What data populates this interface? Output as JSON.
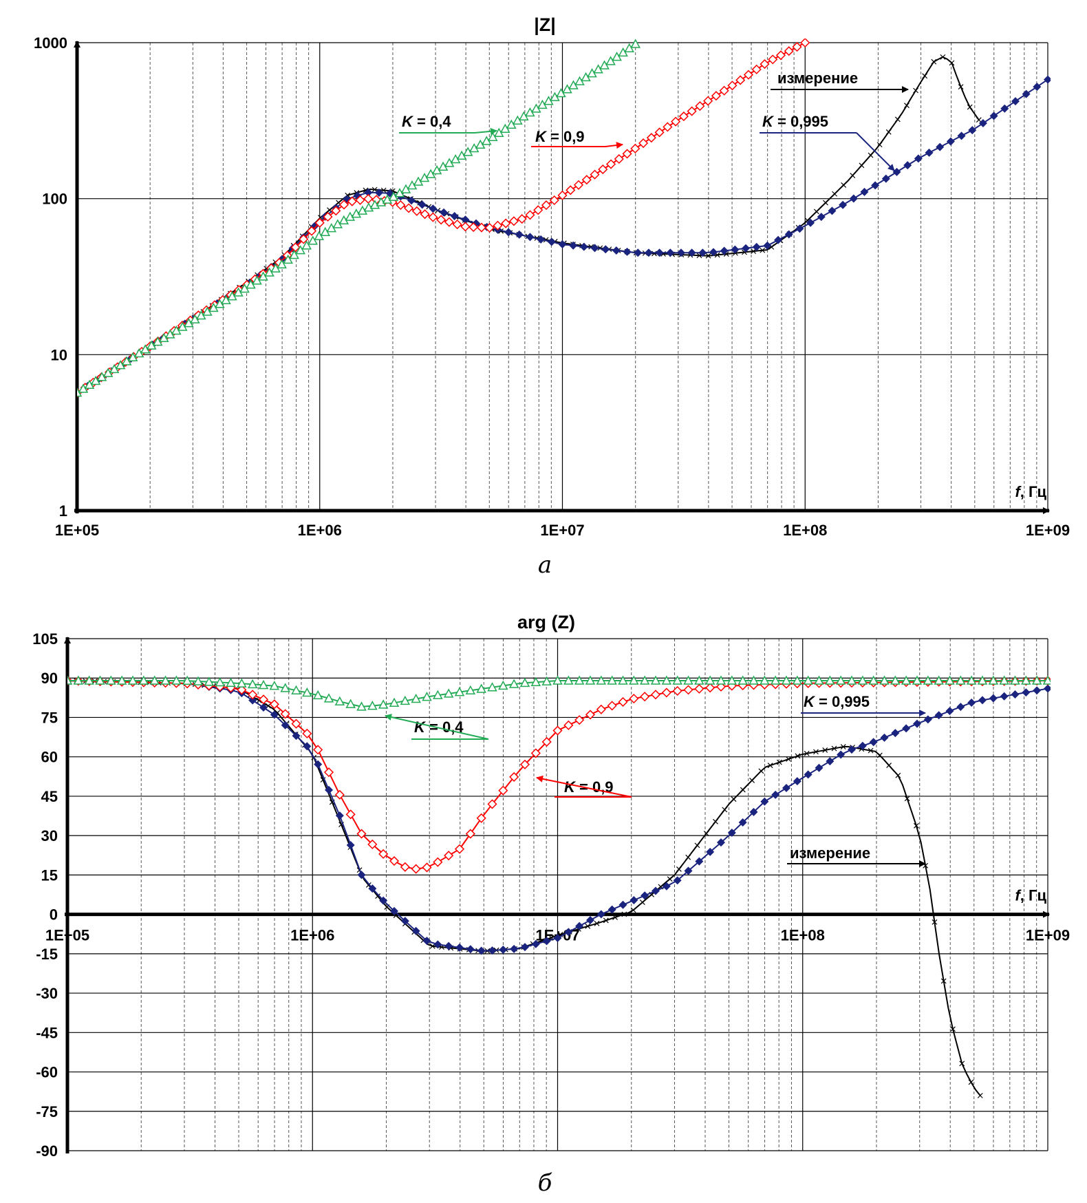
{
  "chart_data": [
    {
      "id": "a",
      "type": "line",
      "title": "|Z|",
      "caption": "а",
      "xscale": "log",
      "yscale": "log",
      "xlim": [
        100000,
        1000000000
      ],
      "ylim": [
        1,
        1000
      ],
      "xlabel_italic": "f",
      "xlabel_rest": ", Гц",
      "xticks": [
        "1E+05",
        "1E+06",
        "1E+07",
        "1E+08",
        "1E+09"
      ],
      "yticks": [
        "1",
        "10",
        "100",
        "1000"
      ],
      "grid": true,
      "series": [
        {
          "name": "измерение",
          "color": "#000000",
          "marker": "cross",
          "x": [
            100000,
            150000,
            200000,
            300000,
            500000,
            700000,
            1000000,
            1300000,
            1600000,
            2000000,
            3000000,
            5000000,
            10000000,
            20000000,
            40000000,
            70000000,
            100000000,
            150000000,
            200000000,
            250000000,
            300000000,
            340000000,
            370000000,
            400000000,
            430000000,
            470000000,
            520000000
          ],
          "y": [
            5.7,
            8.5,
            11.3,
            17,
            29,
            42,
            75,
            105,
            115,
            112,
            85,
            64,
            52,
            45,
            43,
            47,
            70,
            130,
            215,
            350,
            560,
            760,
            810,
            760,
            560,
            400,
            320
          ]
        },
        {
          "name": "K = 0,995",
          "color": "#1a237e",
          "marker": "diamond",
          "x": [
            100000,
            150000,
            200000,
            300000,
            500000,
            700000,
            1000000,
            1300000,
            1600000,
            2000000,
            3000000,
            5000000,
            10000000,
            20000000,
            40000000,
            70000000,
            100000000,
            150000000,
            200000000,
            300000000,
            500000000,
            700000000,
            1000000000
          ],
          "y": [
            5.7,
            8.5,
            11.3,
            17,
            28,
            41,
            72,
            100,
            110,
            108,
            85,
            65,
            51,
            45,
            45,
            50,
            67,
            95,
            125,
            185,
            280,
            400,
            580
          ]
        },
        {
          "name": "K = 0,9",
          "color": "#ff0000",
          "marker": "diamond-open",
          "x": [
            100000,
            150000,
            200000,
            300000,
            500000,
            700000,
            1000000,
            1300000,
            1600000,
            2000000,
            3000000,
            4000000,
            5000000,
            7000000,
            10000000,
            20000000,
            30000000,
            50000000,
            70000000,
            100000000
          ],
          "y": [
            5.7,
            8.5,
            11.3,
            17,
            28,
            40,
            70,
            95,
            100,
            95,
            75,
            66,
            65,
            75,
            105,
            210,
            320,
            530,
            750,
            1000
          ]
        },
        {
          "name": "K = 0,4",
          "color": "#22aa55",
          "marker": "triangle",
          "x": [
            100000,
            150000,
            200000,
            300000,
            500000,
            700000,
            1000000,
            1300000,
            1600000,
            2000000,
            3000000,
            5000000,
            7000000,
            10000000,
            15000000,
            20000000
          ],
          "y": [
            5.7,
            8.5,
            11.3,
            16.5,
            27,
            38,
            58,
            75,
            88,
            102,
            150,
            240,
            340,
            480,
            720,
            980
          ]
        }
      ],
      "annotations": [
        {
          "italic": "",
          "rest": "измерение",
          "color": "#000000"
        },
        {
          "italic": "K",
          "rest": " = 0,4",
          "color": "#22aa55"
        },
        {
          "italic": "K",
          "rest": " = 0,9",
          "color": "#ff0000"
        },
        {
          "italic": "K",
          "rest": " = 0,995",
          "color": "#1a237e"
        }
      ]
    },
    {
      "id": "b",
      "type": "line",
      "title": "arg (Z)",
      "caption": "б",
      "xscale": "log",
      "yscale": "linear",
      "xlim": [
        100000,
        1000000000
      ],
      "ylim": [
        -90,
        105
      ],
      "xlabel_italic": "f",
      "xlabel_rest": ", Гц",
      "xticks": [
        "1E+05",
        "1E+06",
        "1E+07",
        "1E+08",
        "1E+09"
      ],
      "yticks": [
        "105",
        "90",
        "75",
        "60",
        "45",
        "30",
        "15",
        "0",
        "-15",
        "-30",
        "-45",
        "-60",
        "-75",
        "-90"
      ],
      "grid": true,
      "series": [
        {
          "name": "измерение",
          "color": "#000000",
          "marker": "cross",
          "x": [
            100000,
            300000,
            500000,
            700000,
            1000000,
            1300000,
            1600000,
            2000000,
            3000000,
            5000000,
            7000000,
            10000000,
            15000000,
            20000000,
            30000000,
            50000000,
            70000000,
            100000000,
            150000000,
            200000000,
            250000000,
            300000000,
            330000000,
            360000000,
            400000000,
            450000000,
            500000000,
            530000000
          ],
          "y": [
            89,
            88,
            86,
            78,
            61,
            35,
            14,
            3,
            -12,
            -14,
            -13,
            -8,
            -3,
            1,
            15,
            42,
            56,
            61,
            64,
            62,
            52,
            30,
            10,
            -15,
            -40,
            -58,
            -66,
            -69
          ]
        },
        {
          "name": "K = 0,995",
          "color": "#1a237e",
          "marker": "diamond",
          "x": [
            100000,
            300000,
            500000,
            700000,
            1000000,
            1300000,
            1600000,
            2000000,
            3000000,
            5000000,
            7000000,
            10000000,
            15000000,
            20000000,
            30000000,
            50000000,
            70000000,
            100000000,
            150000000,
            200000000,
            300000000,
            500000000,
            1000000000
          ],
          "y": [
            89,
            88,
            85,
            76,
            62,
            37,
            14,
            4,
            -11,
            -14,
            -13,
            -9,
            0,
            5,
            12,
            30,
            43,
            52,
            62,
            66,
            73,
            81,
            86
          ]
        },
        {
          "name": "K = 0,9",
          "color": "#ff0000",
          "marker": "diamond-open",
          "x": [
            100000,
            300000,
            500000,
            700000,
            1000000,
            1300000,
            1600000,
            2000000,
            2500000,
            3000000,
            4000000,
            5000000,
            7000000,
            10000000,
            15000000,
            20000000,
            30000000,
            50000000,
            100000000,
            1000000000
          ],
          "y": [
            89,
            88,
            86,
            80,
            67,
            45,
            30,
            22,
            17,
            18,
            25,
            38,
            55,
            70,
            78,
            82,
            85,
            87,
            88,
            89
          ]
        },
        {
          "name": "K = 0,4",
          "color": "#22aa55",
          "marker": "triangle",
          "x": [
            100000,
            300000,
            500000,
            700000,
            1000000,
            1300000,
            1600000,
            2000000,
            3000000,
            5000000,
            7000000,
            10000000,
            20000000,
            50000000,
            100000000,
            1000000000
          ],
          "y": [
            89,
            89,
            88,
            87,
            84,
            81,
            79,
            80,
            83,
            86,
            88,
            89,
            89,
            89,
            89,
            89
          ]
        }
      ],
      "annotations": [
        {
          "italic": "",
          "rest": "измерение",
          "color": "#000000"
        },
        {
          "italic": "K",
          "rest": " = 0,4",
          "color": "#22aa55"
        },
        {
          "italic": "K",
          "rest": " = 0,9",
          "color": "#ff0000"
        },
        {
          "italic": "K",
          "rest": " = 0,995",
          "color": "#1a237e"
        }
      ]
    }
  ]
}
